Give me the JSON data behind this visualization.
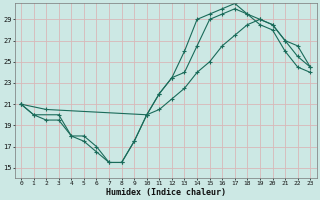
{
  "title": "",
  "xlabel": "Humidex (Indice chaleur)",
  "xlim": [
    -0.5,
    23.5
  ],
  "ylim": [
    14.0,
    30.5
  ],
  "xticks": [
    0,
    1,
    2,
    3,
    4,
    5,
    6,
    7,
    8,
    9,
    10,
    11,
    12,
    13,
    14,
    15,
    16,
    17,
    18,
    19,
    20,
    21,
    22,
    23
  ],
  "yticks": [
    15,
    17,
    19,
    21,
    23,
    25,
    27,
    29
  ],
  "background_color": "#cce8e4",
  "grid_color": "#d8b8b8",
  "line_color": "#1a6b5a",
  "series1_x": [
    0,
    1,
    3,
    4,
    5,
    6,
    7,
    8,
    9,
    10,
    11,
    12,
    13,
    14,
    15,
    16,
    17,
    18,
    19,
    20,
    21,
    22,
    23
  ],
  "series1_y": [
    21,
    20,
    20,
    18,
    17.5,
    16.5,
    15.5,
    15.5,
    17.5,
    20,
    22,
    23.5,
    24,
    26.5,
    29,
    29.5,
    30,
    29.5,
    29,
    28.5,
    27,
    25.5,
    24.5
  ],
  "series2_x": [
    0,
    2,
    10,
    11,
    12,
    13,
    14,
    15,
    16,
    17,
    18,
    19,
    20,
    21,
    22,
    23
  ],
  "series2_y": [
    21,
    20.5,
    20,
    20.5,
    21.5,
    22.5,
    24,
    25,
    26.5,
    27.5,
    28.5,
    29,
    28.5,
    27,
    26.5,
    24.5
  ],
  "series3_x": [
    0,
    1,
    2,
    3,
    4,
    5,
    6,
    7,
    8,
    9,
    10,
    11,
    12,
    13,
    14,
    15,
    16,
    17,
    18,
    19,
    20,
    21,
    22,
    23
  ],
  "series3_y": [
    21,
    20,
    19.5,
    19.5,
    18,
    18,
    17,
    15.5,
    15.5,
    17.5,
    20,
    22,
    23.5,
    26,
    29,
    29.5,
    30,
    30.5,
    29.5,
    28.5,
    28,
    26,
    24.5,
    24
  ]
}
